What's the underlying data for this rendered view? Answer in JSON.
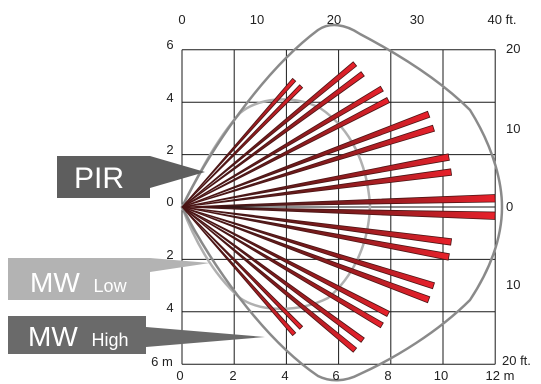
{
  "colors": {
    "grid": "#1a1a1a",
    "beam_fill": "#e8212b",
    "beam_edge": "#4a1414",
    "pir_outline": "#8a8a8a",
    "mw_low_outline": "#b0b0b0",
    "pir_label_bg": "#5e5e5e",
    "mw_low_label_bg": "#b3b3b3",
    "mw_high_label_bg": "#6a6a6a",
    "label_text": "#ffffff"
  },
  "axes": {
    "top_ticks": [
      "0",
      "10",
      "20",
      "30",
      "40 ft."
    ],
    "bottom_ticks": [
      "0",
      "2",
      "4",
      "6",
      "8",
      "10",
      "12 m"
    ],
    "left_ticks": [
      "6",
      "4",
      "2",
      "0",
      "2",
      "4",
      "6 m"
    ],
    "right_ticks": [
      "20",
      "10",
      "0",
      "10",
      "20 ft."
    ]
  },
  "labels": {
    "pir": "PIR",
    "mw_low_main": "MW",
    "mw_low_sub": "Low",
    "mw_high_main": "MW",
    "mw_high_sub": "High"
  },
  "beams": {
    "count": 11,
    "angles_deg": [
      -47,
      -38,
      -29,
      -19,
      -9,
      0,
      9,
      19,
      29,
      38,
      47
    ],
    "reach_m": [
      6.5,
      8.6,
      8.9,
      10.1,
      10.4,
      12.0,
      10.4,
      10.1,
      8.9,
      8.6,
      6.5
    ]
  }
}
